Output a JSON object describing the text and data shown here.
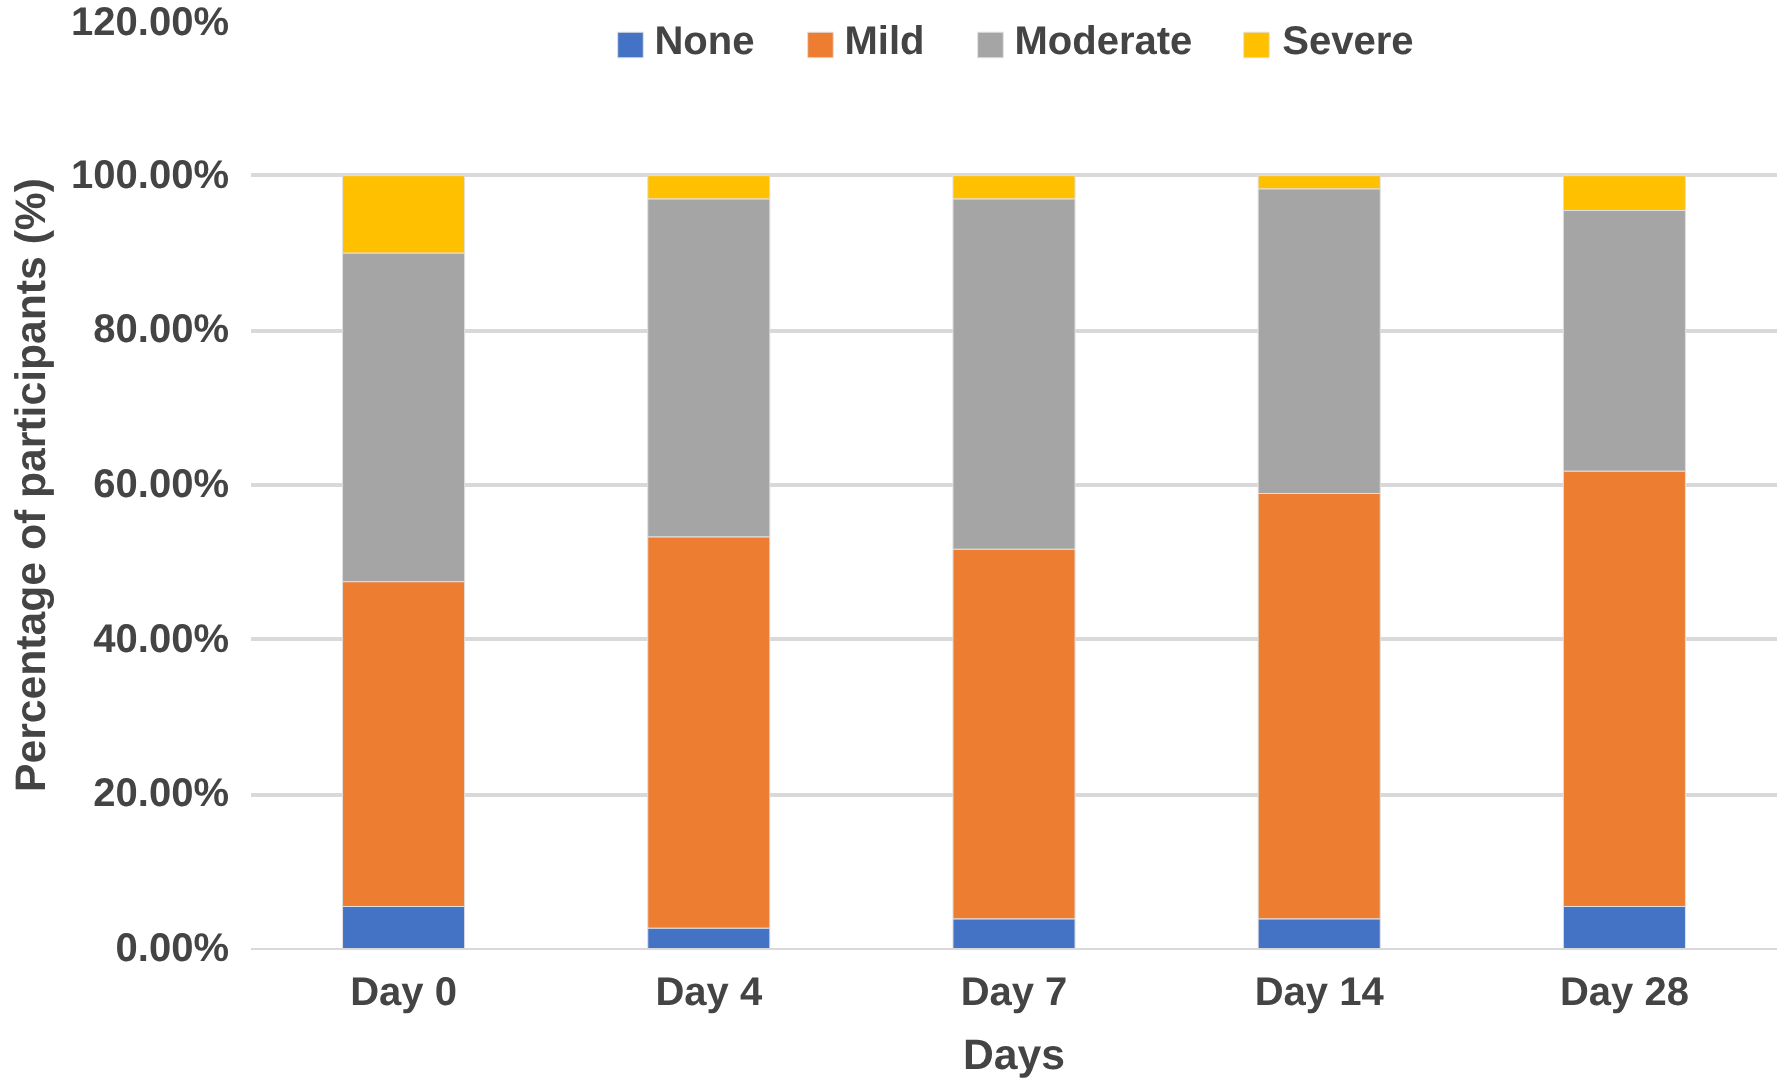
{
  "chart_data": {
    "type": "bar",
    "stacked": true,
    "xlabel": "Days",
    "ylabel": "Percentage of participants (%)",
    "categories": [
      "Day 0",
      "Day 4",
      "Day 7",
      "Day 14",
      "Day 28"
    ],
    "series": [
      {
        "name": "None",
        "color": "#4472c4",
        "values": [
          5.5,
          2.7,
          3.9,
          3.9,
          5.5
        ]
      },
      {
        "name": "Mild",
        "color": "#ed7d31",
        "values": [
          42.0,
          50.6,
          47.8,
          55.0,
          56.3
        ]
      },
      {
        "name": "Moderate",
        "color": "#a5a5a5",
        "values": [
          42.5,
          43.7,
          45.3,
          39.4,
          33.7
        ]
      },
      {
        "name": "Severe",
        "color": "#ffc000",
        "values": [
          10.0,
          3.0,
          3.0,
          1.7,
          4.5
        ]
      }
    ],
    "ylim": [
      0,
      120
    ],
    "yticks": [
      {
        "value": 0,
        "label": "0.00%"
      },
      {
        "value": 20,
        "label": "20.00%"
      },
      {
        "value": 40,
        "label": "40.00%"
      },
      {
        "value": 60,
        "label": "60.00%"
      },
      {
        "value": 80,
        "label": "80.00%"
      },
      {
        "value": 100,
        "label": "100.00%"
      },
      {
        "value": 120,
        "label": "120.00%"
      }
    ],
    "grid": "y",
    "legend": "top"
  }
}
